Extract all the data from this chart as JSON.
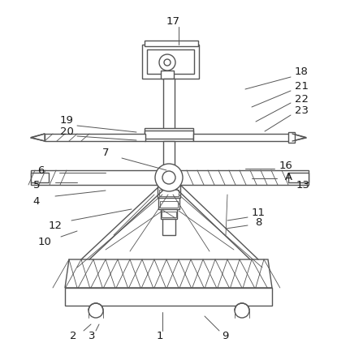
{
  "bg": "#ffffff",
  "lc": "#555555",
  "lw": 1.0,
  "tlw": 0.6,
  "annot_lw": 0.7,
  "fs": 9.5,
  "annotations": [
    [
      "17",
      213,
      27,
      220,
      33,
      220,
      55
    ],
    [
      "18",
      371,
      88,
      358,
      95,
      302,
      110
    ],
    [
      "21",
      371,
      107,
      358,
      112,
      310,
      132
    ],
    [
      "22",
      371,
      122,
      358,
      127,
      315,
      150
    ],
    [
      "23",
      371,
      137,
      358,
      142,
      326,
      162
    ],
    [
      "19",
      82,
      148,
      95,
      155,
      168,
      163
    ],
    [
      "20",
      82,
      163,
      95,
      168,
      168,
      173
    ],
    [
      "7",
      130,
      188,
      150,
      195,
      205,
      210
    ],
    [
      "6",
      50,
      210,
      73,
      213,
      130,
      213
    ],
    [
      "5",
      45,
      228,
      68,
      225,
      95,
      225
    ],
    [
      "4",
      45,
      248,
      68,
      242,
      130,
      235
    ],
    [
      "16",
      352,
      205,
      338,
      208,
      302,
      208
    ],
    [
      "A",
      355,
      218,
      341,
      220,
      310,
      220
    ],
    [
      "13",
      373,
      228,
      360,
      228,
      335,
      228
    ],
    [
      "12",
      68,
      278,
      88,
      272,
      162,
      258
    ],
    [
      "10",
      55,
      298,
      75,
      292,
      95,
      285
    ],
    [
      "11",
      318,
      262,
      305,
      268,
      280,
      272
    ],
    [
      "8",
      318,
      275,
      305,
      278,
      278,
      282
    ],
    [
      "1",
      197,
      415,
      200,
      408,
      200,
      385
    ],
    [
      "9",
      277,
      415,
      270,
      408,
      252,
      390
    ],
    [
      "2",
      90,
      415,
      103,
      408,
      112,
      400
    ],
    [
      "3",
      113,
      415,
      118,
      408,
      122,
      400
    ]
  ]
}
